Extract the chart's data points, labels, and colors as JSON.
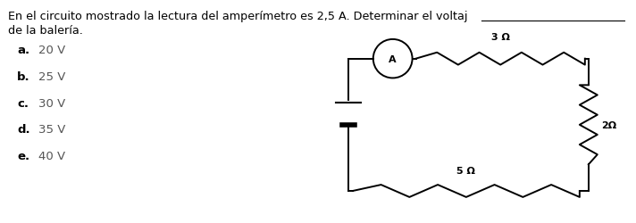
{
  "title_line1": "En el circuito mostrado la lectura del amperímetro es 2,5 A. Determinar el voltaj",
  "title_underline": true,
  "title_line2": "de la balería.",
  "options_letters": [
    "a.",
    "b.",
    "c.",
    "d.",
    "e."
  ],
  "options_values": [
    "20 V",
    "25 V",
    "30 V",
    "35 V",
    "40 V"
  ],
  "bg_color": "#ffffff",
  "text_color": "#000000",
  "circuit_color": "#000000",
  "resistor_3_label": "3 Ω",
  "resistor_2_label": "2Ω",
  "resistor_5_label": "5 Ω",
  "ammeter_label": "A",
  "font_size_title": 9.2,
  "font_size_options_letter": 9.5,
  "font_size_options_value": 9.5,
  "font_size_labels": 8.0,
  "lw": 1.4
}
